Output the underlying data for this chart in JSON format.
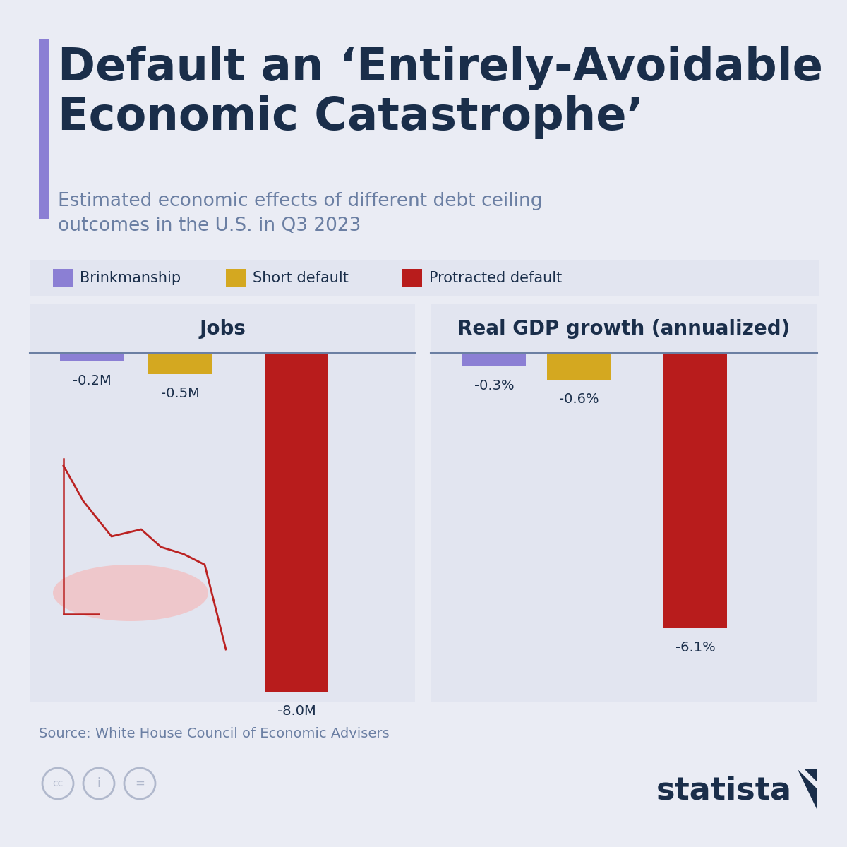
{
  "title_line1": "Default an ‘Entirely-Avoidable",
  "title_line2": "Economic Catastrophe’",
  "subtitle": "Estimated economic effects of different debt ceiling\noutcomes in the U.S. in Q3 2023",
  "bg_color": "#eaecf4",
  "panel_color": "#e2e5f0",
  "title_color": "#1a2e4a",
  "subtitle_color": "#6b7fa3",
  "purple_bar_color": "#8b7fd4",
  "legend": [
    "Brinkmanship",
    "Short default",
    "Protracted default"
  ],
  "legend_colors": [
    "#8b7fd4",
    "#d4a820",
    "#b81c1c"
  ],
  "jobs_values": [
    -0.2,
    -0.5,
    -8.0
  ],
  "jobs_labels": [
    "-0.2M",
    "-0.5M",
    "-8.0M"
  ],
  "gdp_values": [
    -0.3,
    -0.6,
    -6.1
  ],
  "gdp_labels": [
    "-0.3%",
    "-0.6%",
    "-6.1%"
  ],
  "bar_colors": [
    "#8b7fd4",
    "#d4a820",
    "#b81c1c"
  ],
  "jobs_title": "Jobs",
  "gdp_title": "Real GDP growth (annualized)",
  "source": "Source: White House Council of Economic Advisers",
  "source_color": "#6b7fa3",
  "icon_color": "#b0b8cc",
  "statista_color": "#1a2e4a"
}
